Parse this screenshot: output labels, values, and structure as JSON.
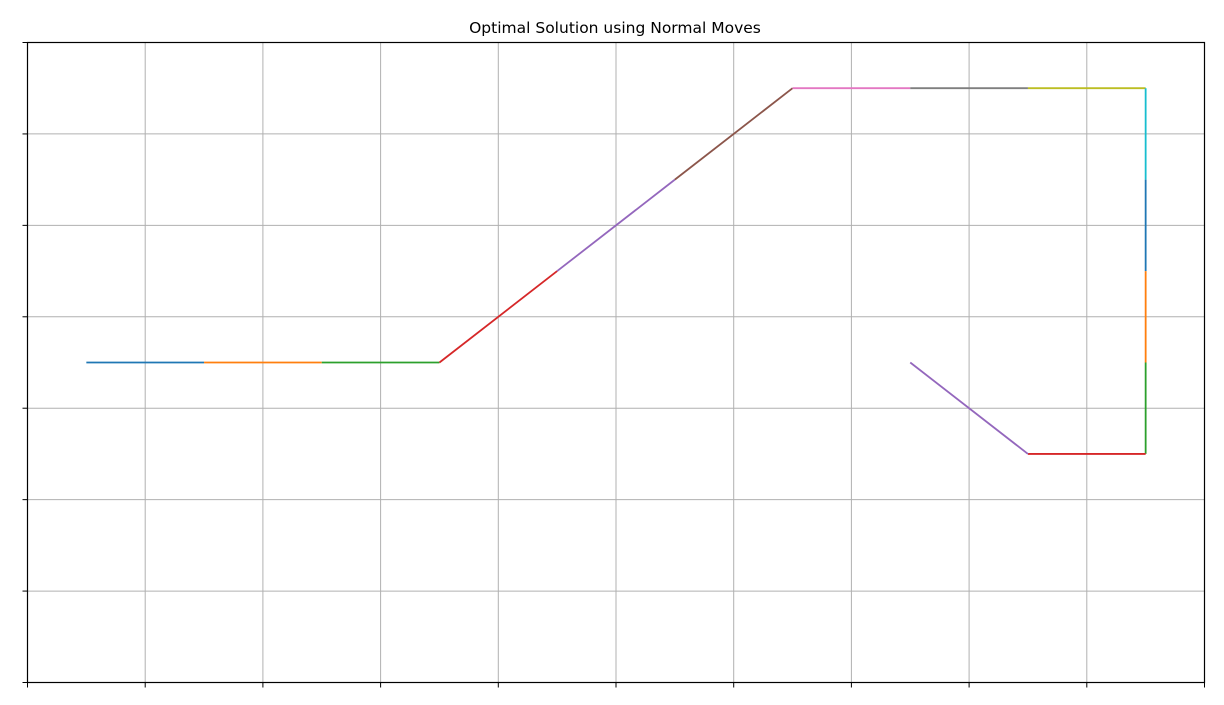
{
  "chart_data": {
    "type": "line",
    "title": "Optimal Solution using Normal Moves",
    "xlabel": "",
    "ylabel": "",
    "xlim": [
      0,
      10
    ],
    "ylim": [
      0,
      7
    ],
    "xticks": [
      0,
      1,
      2,
      3,
      4,
      5,
      6,
      7,
      8,
      9,
      10
    ],
    "yticks": [
      0,
      1,
      2,
      3,
      4,
      5,
      6,
      7
    ],
    "tick_labels_visible": false,
    "grid": true,
    "legend": "none",
    "series": [
      {
        "color": "#1f77b4",
        "points": [
          [
            0.5,
            3.5
          ],
          [
            1.5,
            3.5
          ]
        ]
      },
      {
        "color": "#ff7f0e",
        "points": [
          [
            1.5,
            3.5
          ],
          [
            2.5,
            3.5
          ]
        ]
      },
      {
        "color": "#2ca02c",
        "points": [
          [
            2.5,
            3.5
          ],
          [
            3.5,
            3.5
          ]
        ]
      },
      {
        "color": "#d62728",
        "points": [
          [
            3.5,
            3.5
          ],
          [
            4.5,
            4.5
          ]
        ]
      },
      {
        "color": "#9467bd",
        "points": [
          [
            4.5,
            4.5
          ],
          [
            5.5,
            5.5
          ]
        ]
      },
      {
        "color": "#8c564b",
        "points": [
          [
            5.5,
            5.5
          ],
          [
            6.5,
            6.5
          ]
        ]
      },
      {
        "color": "#e377c2",
        "points": [
          [
            6.5,
            6.5
          ],
          [
            7.5,
            6.5
          ]
        ]
      },
      {
        "color": "#7f7f7f",
        "points": [
          [
            7.5,
            6.5
          ],
          [
            8.5,
            6.5
          ]
        ]
      },
      {
        "color": "#bcbd22",
        "points": [
          [
            8.5,
            6.5
          ],
          [
            9.5,
            6.5
          ]
        ]
      },
      {
        "color": "#17becf",
        "points": [
          [
            9.5,
            6.5
          ],
          [
            9.5,
            5.5
          ]
        ]
      },
      {
        "color": "#1f77b4",
        "points": [
          [
            9.5,
            5.5
          ],
          [
            9.5,
            4.5
          ]
        ]
      },
      {
        "color": "#ff7f0e",
        "points": [
          [
            9.5,
            4.5
          ],
          [
            9.5,
            3.5
          ]
        ]
      },
      {
        "color": "#2ca02c",
        "points": [
          [
            9.5,
            3.5
          ],
          [
            9.5,
            2.5
          ]
        ]
      },
      {
        "color": "#d62728",
        "points": [
          [
            9.5,
            2.5
          ],
          [
            8.5,
            2.5
          ]
        ]
      },
      {
        "color": "#9467bd",
        "points": [
          [
            8.5,
            2.5
          ],
          [
            7.5,
            3.5
          ]
        ]
      }
    ]
  }
}
